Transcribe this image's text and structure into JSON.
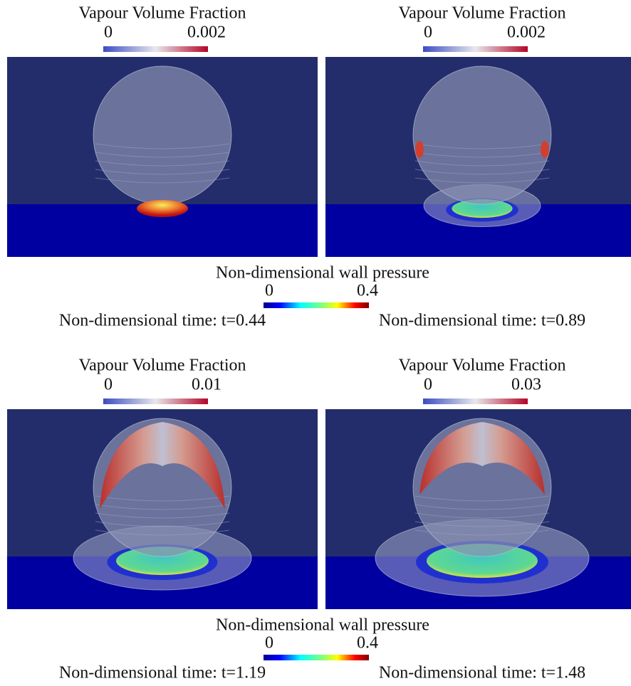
{
  "panels": [
    {
      "colorbar_title": "Vapour Volume Fraction",
      "colorbar_min": "0",
      "colorbar_max": "0.002",
      "time": "Non-dimensional time: t=0.44"
    },
    {
      "colorbar_title": "Vapour Volume Fraction",
      "colorbar_min": "0",
      "colorbar_max": "0.002",
      "time": "Non-dimensional time: t=0.89"
    },
    {
      "colorbar_title": "Vapour Volume Fraction",
      "colorbar_min": "0",
      "colorbar_max": "0.01",
      "time": "Non-dimensional time: t=1.19"
    },
    {
      "colorbar_title": "Vapour Volume Fraction",
      "colorbar_min": "0",
      "colorbar_max": "0.03",
      "time": "Non-dimensional time: t=1.48"
    }
  ],
  "wall_pressure": [
    {
      "title": "Non-dimensional wall pressure",
      "min": "0",
      "max": "0.4"
    },
    {
      "title": "Non-dimensional wall pressure",
      "min": "0",
      "max": "0.4"
    }
  ]
}
